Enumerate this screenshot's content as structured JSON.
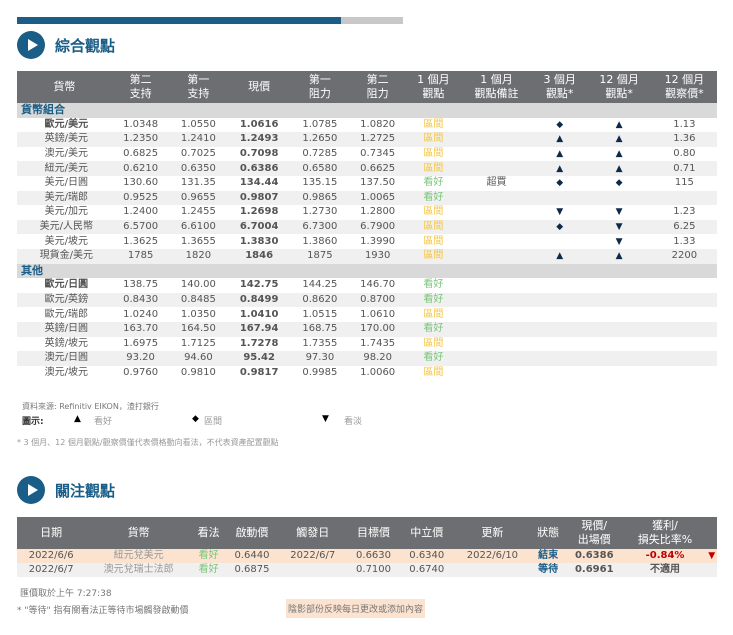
{
  "progress": {
    "value_percent": 84,
    "color": "#1a5d87"
  },
  "section1": {
    "title": "綜合觀點"
  },
  "table1": {
    "headers": [
      "貨幣",
      "第二\n支持",
      "第一\n支持",
      "現價",
      "第一\n阻力",
      "第二\n阻力",
      "1 個月\n觀點",
      "1 個月\n觀點備註",
      "3 個月\n觀點*",
      "12 個月\n觀點*",
      "12 個月\n觀察價*"
    ],
    "groups": [
      {
        "name": "貨幣組合",
        "rows": [
          [
            "歐元/美元",
            "1.0348",
            "1.0550",
            "1.0616",
            "1.0785",
            "1.0820",
            "區間",
            "",
            "diamond",
            "up",
            "1.13"
          ],
          [
            "英鎊/美元",
            "1.2350",
            "1.2410",
            "1.2493",
            "1.2650",
            "1.2725",
            "區間",
            "",
            "up",
            "up",
            "1.36"
          ],
          [
            "澳元/美元",
            "0.6825",
            "0.7025",
            "0.7098",
            "0.7285",
            "0.7345",
            "區間",
            "",
            "up",
            "up",
            "0.80"
          ],
          [
            "紐元/美元",
            "0.6210",
            "0.6350",
            "0.6386",
            "0.6580",
            "0.6625",
            "區間",
            "",
            "up",
            "up",
            "0.71"
          ],
          [
            "美元/日圓",
            "130.60",
            "131.35",
            "134.44",
            "135.15",
            "137.50",
            "看好",
            "超買",
            "diamond",
            "diamond",
            "115"
          ],
          [
            "美元/瑞郎",
            "0.9525",
            "0.9655",
            "0.9807",
            "0.9865",
            "1.0065",
            "看好",
            "",
            "",
            "",
            ""
          ],
          [
            "美元/加元",
            "1.2400",
            "1.2455",
            "1.2698",
            "1.2730",
            "1.2800",
            "區間",
            "",
            "down",
            "down",
            "1.23"
          ],
          [
            "美元/人民幣",
            "6.5700",
            "6.6100",
            "6.7004",
            "6.7300",
            "6.7900",
            "區間",
            "",
            "diamond",
            "down",
            "6.25"
          ],
          [
            "美元/坡元",
            "1.3625",
            "1.3655",
            "1.3830",
            "1.3860",
            "1.3990",
            "區間",
            "",
            "",
            "down",
            "1.33"
          ],
          [
            "現貨金/美元",
            "1785",
            "1820",
            "1846",
            "1875",
            "1930",
            "區間",
            "",
            "up",
            "up",
            "2200"
          ]
        ]
      },
      {
        "name": "其他",
        "rows": [
          [
            "歐元/日圓",
            "138.75",
            "140.00",
            "142.75",
            "144.25",
            "146.70",
            "看好",
            "",
            "",
            "",
            ""
          ],
          [
            "歐元/英鎊",
            "0.8430",
            "0.8485",
            "0.8499",
            "0.8620",
            "0.8700",
            "看好",
            "",
            "",
            "",
            ""
          ],
          [
            "歐元/瑞郎",
            "1.0240",
            "1.0350",
            "1.0410",
            "1.0515",
            "1.0610",
            "區間",
            "",
            "",
            "",
            ""
          ],
          [
            "英鎊/日圓",
            "163.70",
            "164.50",
            "167.94",
            "168.75",
            "170.00",
            "看好",
            "",
            "",
            "",
            ""
          ],
          [
            "英鎊/坡元",
            "1.6975",
            "1.7125",
            "1.7278",
            "1.7355",
            "1.7435",
            "區間",
            "",
            "",
            "",
            ""
          ],
          [
            "澳元/日圓",
            "93.20",
            "94.60",
            "95.42",
            "97.30",
            "98.20",
            "看好",
            "",
            "",
            "",
            ""
          ],
          [
            "澳元/坡元",
            "0.9760",
            "0.9810",
            "0.9817",
            "0.9985",
            "1.0060",
            "區間",
            "",
            "",
            "",
            ""
          ]
        ]
      }
    ]
  },
  "source": "資料來源: Refinitiv EIKON，渣打銀行",
  "legend": {
    "label": "圖示:",
    "up": "看好",
    "diamond": "區間",
    "down": "看淡"
  },
  "footnote1": "* 3 個月、12 個月觀點/觀察價僅代表價格動向看法，不代表資產配置觀點",
  "section2": {
    "title": "關注觀點"
  },
  "table2": {
    "headers": [
      "日期",
      "貨幣",
      "看法",
      "啟動價",
      "觸發日",
      "目標價",
      "中立價",
      "更新",
      "狀態",
      "現價/\n出場價",
      "獲利/\n損失比率%"
    ],
    "rows": [
      [
        "2022/6/6",
        "紐元兌美元",
        "看好",
        "0.6440",
        "2022/6/7",
        "0.6630",
        "0.6340",
        "2022/6/10",
        "結束",
        "0.6386",
        "-0.84%"
      ],
      [
        "2022/6/7",
        "澳元兌瑞士法郎",
        "看好",
        "0.6875",
        "",
        "0.7100",
        "0.6740",
        "",
        "等待",
        "0.6961",
        "不適用"
      ]
    ]
  },
  "rate_time": "匯價取於上午 7:27:38",
  "footnote2": "* \"等待\" 指有關看法正等待市場觸發啟動價",
  "shade_note": "陰影部份反映每日更改或添加內容"
}
